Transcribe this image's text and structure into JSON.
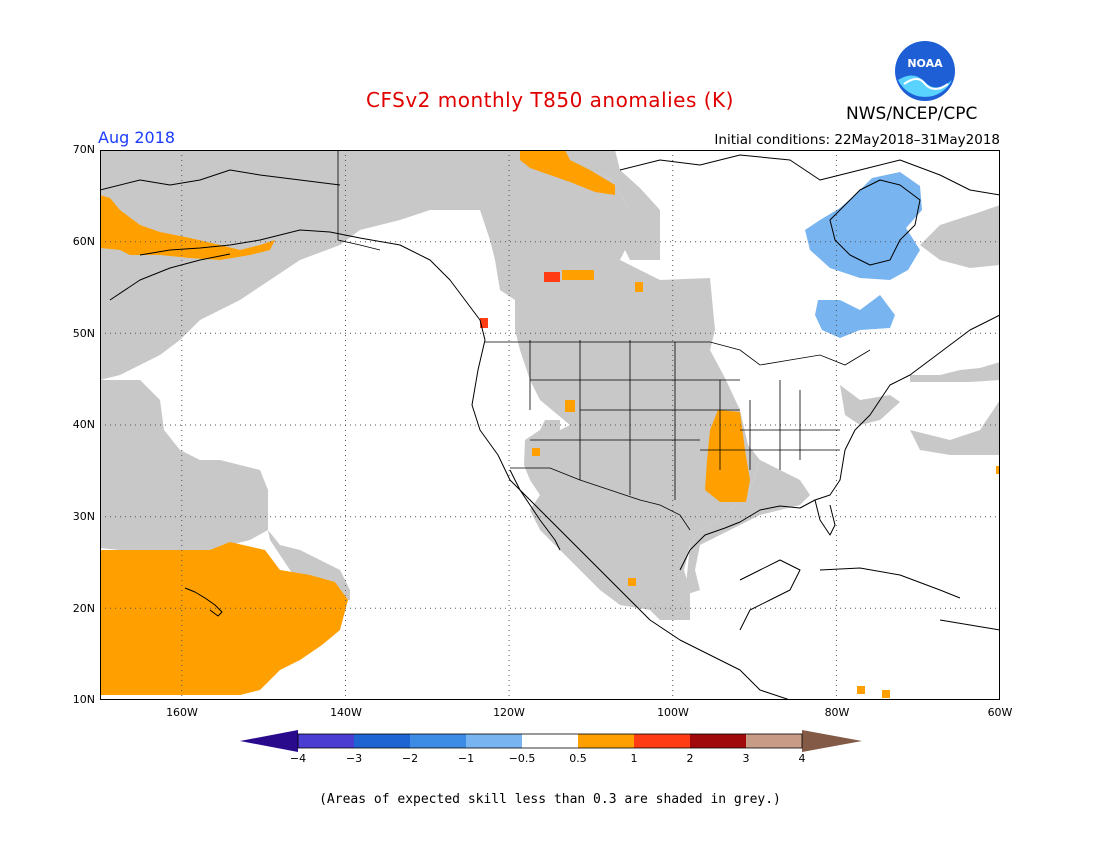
{
  "title": "CFSv2 monthly T850 anomalies (K)",
  "agency": "NWS/NCEP/CPC",
  "logo": {
    "icon": "noaa-logo-icon",
    "text": "NOAA",
    "colors": {
      "blue": "#1f5fd6",
      "cyan": "#5ad2ff",
      "white": "#ffffff"
    }
  },
  "valid_month": "Aug 2018",
  "initial_conditions": "Initial conditions: 22May2018–31May2018",
  "axes": {
    "lat_labels": [
      "70N",
      "60N",
      "50N",
      "40N",
      "30N",
      "20N",
      "10N"
    ],
    "lon_labels": [
      "160W",
      "140W",
      "120W",
      "100W",
      "80W",
      "60W"
    ],
    "lat_range": [
      10,
      70
    ],
    "lon_range": [
      -170,
      -60
    ],
    "lat_ticks": [
      70,
      60,
      50,
      40,
      30,
      20,
      10
    ],
    "lon_ticks": [
      -160,
      -140,
      -120,
      -100,
      -80,
      -60
    ],
    "gridlines": "dotted"
  },
  "colorbar": {
    "labels": [
      "−4",
      "−3",
      "−2",
      "−1",
      "−0.5",
      "0.5",
      "1",
      "2",
      "3",
      "4"
    ],
    "colors": {
      "lt_minus4": "#2a0a8c",
      "m4_m3": "#4b3cd2",
      "m3_m2": "#1e64d2",
      "m2_m1": "#3c8ce6",
      "m1_m05": "#78b4f0",
      "m05_05": "#ffffff",
      "p05_1": "#ffa000",
      "p1_2": "#ff3c14",
      "p2_3": "#a00a0a",
      "p3_4": "#c89b87",
      "gt_4": "#825a46"
    }
  },
  "shading": {
    "low_skill": "#c8c8c8",
    "warm": "#ffa000",
    "warm_strong": "#ff3c14",
    "cool": "#78b4f0"
  },
  "footnote": "(Areas of expected skill less than 0.3 are shaded in grey.)"
}
